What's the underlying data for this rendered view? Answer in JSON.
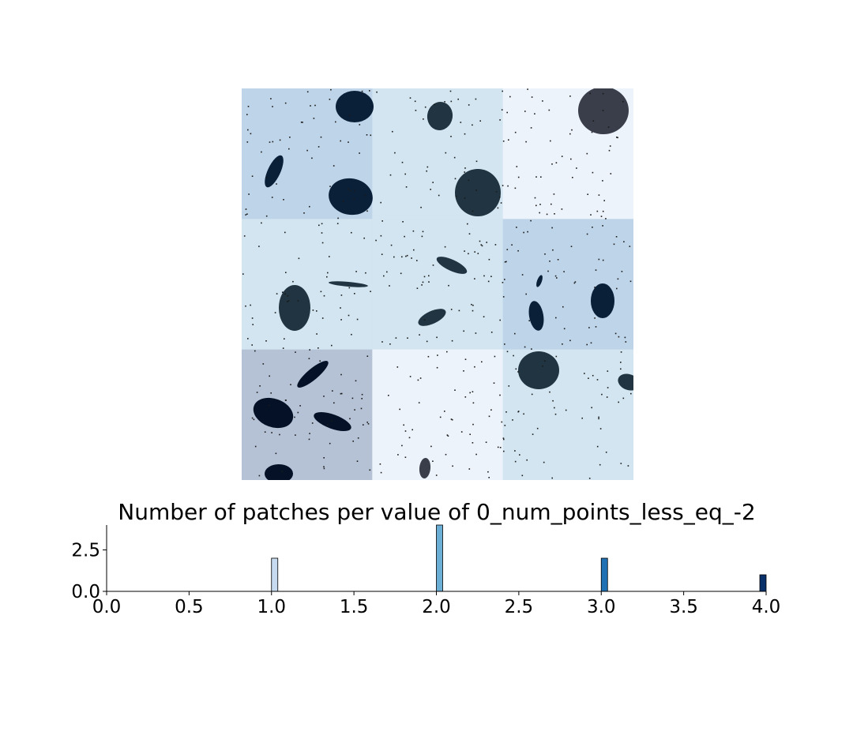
{
  "mosaic": {
    "grid": [
      3,
      3
    ],
    "tile_colors": [
      [
        "#bed4e8",
        "#d2e5f1",
        "#edf3fb"
      ],
      [
        "#d2e5f1",
        "#d2e5f1",
        "#bed4e8"
      ],
      [
        "#b5c2d5",
        "#edf3fb",
        "#d2e5f1"
      ]
    ],
    "blob_colors": {
      "dark": "#0a1f38",
      "mid": "#203541",
      "grey": "#3a3e4b",
      "navy": "#041127"
    },
    "point_color": "#1a1a1a"
  },
  "chart_data": {
    "type": "bar",
    "title": "Number of patches per value of 0_num_points_less_eq_-2",
    "xlabel": "",
    "ylabel": "",
    "x": [
      1.0,
      2.0,
      3.0,
      4.0
    ],
    "values": [
      2,
      4,
      2,
      1
    ],
    "bar_colors": [
      "#c6dbef",
      "#6baed6",
      "#2171b5",
      "#08306b"
    ],
    "xlim": [
      0.0,
      4.0
    ],
    "ylim": [
      0,
      4
    ],
    "xticks": [
      "0.0",
      "0.5",
      "1.0",
      "1.5",
      "2.0",
      "2.5",
      "3.0",
      "3.5",
      "4.0"
    ],
    "yticks": [
      "0.0",
      "2.5"
    ],
    "grid": false
  }
}
